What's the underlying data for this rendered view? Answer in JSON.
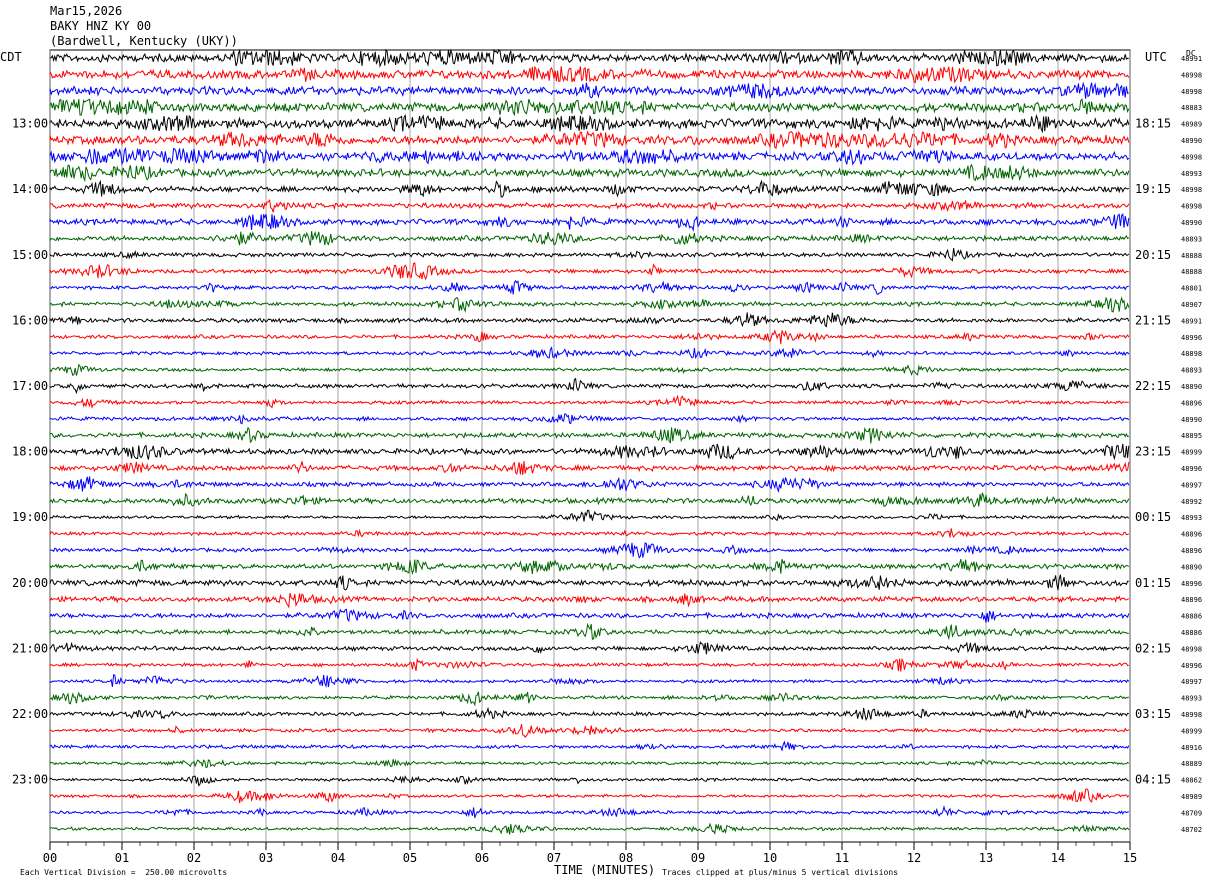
{
  "header": {
    "date": "Mar15,2026",
    "station": "BAKY HNZ KY 00",
    "location": "(Bardwell, Kentucky (UKY))"
  },
  "labels": {
    "left_zone": "CDT",
    "right_zone": "UTC",
    "dc": "DC",
    "footer_scale": "Each Vertical Division =  250.00 microvolts",
    "footer_clip": "Traces clipped at plus/minus 5 vertical divisions"
  },
  "chart_data": {
    "type": "line",
    "title": "Mar15,2026",
    "xlabel": "TIME (MINUTES)",
    "ylabel": "",
    "x_ticks": [
      "00",
      "01",
      "02",
      "03",
      "04",
      "05",
      "06",
      "07",
      "08",
      "09",
      "10",
      "11",
      "12",
      "13",
      "14",
      "15"
    ],
    "xlim": [
      0,
      15
    ],
    "left_hour_labels": [
      "13:00",
      "14:00",
      "15:00",
      "16:00",
      "17:00",
      "18:00",
      "19:00",
      "20:00",
      "21:00",
      "22:00",
      "23:00"
    ],
    "right_hour_labels": [
      "18:15",
      "19:15",
      "20:15",
      "21:15",
      "22:15",
      "23:15",
      "00:15",
      "01:15",
      "02:15",
      "03:15",
      "04:15"
    ],
    "first_labeled_row": 4,
    "row_colors": [
      "#000000",
      "#ff0000",
      "#0000ff",
      "#006400"
    ],
    "dc_offsets": [
      "48991",
      "48998",
      "48998",
      "48883",
      "48989",
      "48990",
      "48998",
      "48993",
      "48998",
      "48998",
      "48990",
      "48893",
      "48888",
      "48888",
      "48801",
      "48907",
      "48991",
      "48996",
      "48898",
      "48893",
      "48890",
      "48896",
      "48990",
      "48895",
      "48999",
      "48996",
      "48997",
      "48992",
      "48993",
      "48896",
      "48896",
      "48890",
      "48996",
      "48896",
      "48886",
      "48886",
      "48998",
      "48996",
      "48997",
      "48993",
      "48998",
      "48999",
      "48916",
      "48889",
      "48862",
      "48989",
      "48709",
      "48702"
    ],
    "row_activity": [
      2.2,
      2.4,
      2.3,
      2.4,
      2.6,
      2.5,
      2.2,
      2.1,
      1.5,
      1.4,
      1.6,
      1.4,
      1.1,
      1.1,
      1.0,
      1.1,
      1.2,
      1.0,
      0.9,
      0.9,
      1.1,
      0.9,
      1.0,
      1.3,
      1.5,
      1.4,
      1.2,
      1.4,
      0.8,
      0.9,
      1.0,
      1.3,
      1.6,
      1.4,
      1.3,
      1.2,
      1.1,
      0.9,
      0.8,
      0.9,
      1.0,
      0.9,
      0.9,
      0.8,
      0.8,
      0.8,
      0.8,
      0.8
    ]
  }
}
